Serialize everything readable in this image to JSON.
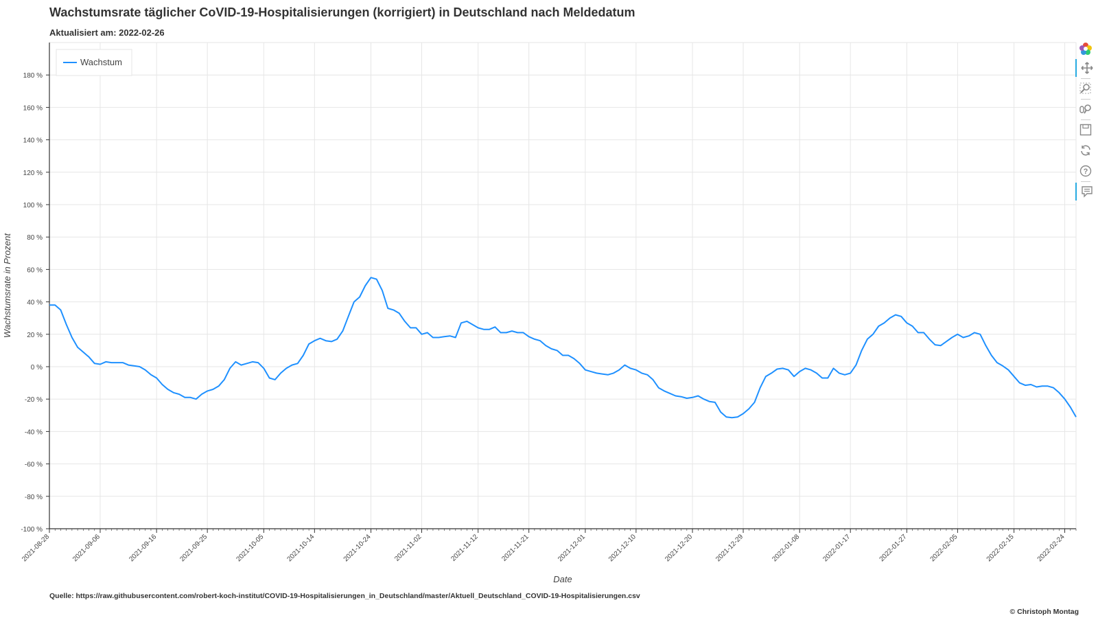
{
  "header": {
    "title": "Wachstumsrate täglicher CoVID-19-Hospitalisierungen (korrigiert) in Deutschland nach Meldedatum",
    "subtitle": "Aktualisiert am: 2022-02-26"
  },
  "footer": {
    "source": "Quelle: https://raw.githubusercontent.com/robert-koch-institut/COVID-19-Hospitalisierungen_in_Deutschland/master/Aktuell_Deutschland_COVID-19-Hospitalisierungen.csv",
    "copyright": "© Christoph Montag"
  },
  "colors": {
    "series": "#1e90ff",
    "grid": "#e6e6e6",
    "axis": "#333333"
  },
  "toolbar": {
    "tools": [
      {
        "icon": "bokeh-logo-icon",
        "active": false
      },
      {
        "icon": "pan-icon",
        "active": true
      },
      {
        "icon": "box-zoom-icon",
        "active": false
      },
      {
        "icon": "wheel-zoom-icon",
        "active": false
      },
      {
        "icon": "save-icon",
        "active": false
      },
      {
        "icon": "reset-icon",
        "active": false
      },
      {
        "icon": "help-icon",
        "active": false
      },
      {
        "icon": "hover-icon",
        "active": true
      }
    ]
  },
  "chart_data": {
    "type": "line",
    "title": "Wachstumsrate täglicher CoVID-19-Hospitalisierungen (korrigiert) in Deutschland nach Meldedatum",
    "xlabel": "Date",
    "ylabel": "Wachstumsrate in Prozent",
    "x_start": "2021-08-28",
    "xlim": [
      "2021-08-28",
      "2022-02-26"
    ],
    "ylim": [
      -100,
      200
    ],
    "yticks": [
      -100,
      -80,
      -60,
      -40,
      -20,
      0,
      20,
      40,
      60,
      80,
      100,
      120,
      140,
      160,
      180
    ],
    "ytick_labels": [
      "-100 %",
      "-80 %",
      "-60 %",
      "-40 %",
      "-20 %",
      "0 %",
      "20 %",
      "40 %",
      "60 %",
      "80 %",
      "100 %",
      "120 %",
      "140 %",
      "160 %",
      "180 %"
    ],
    "xtick_labels": [
      "2021-08-28",
      "2021-09-06",
      "2021-09-16",
      "2021-09-25",
      "2021-10-05",
      "2021-10-14",
      "2021-10-24",
      "2021-11-02",
      "2021-11-12",
      "2021-11-21",
      "2021-12-01",
      "2021-12-10",
      "2021-12-20",
      "2021-12-29",
      "2022-01-08",
      "2022-01-17",
      "2022-01-27",
      "2022-02-05",
      "2022-02-15",
      "2022-02-24"
    ],
    "grid": true,
    "legend_position": "top-left",
    "series": [
      {
        "name": "Wachstum",
        "color": "#1e90ff",
        "x": [
          "2021-08-28",
          "2021-08-29",
          "2021-08-30",
          "2021-08-31",
          "2021-09-01",
          "2021-09-02",
          "2021-09-03",
          "2021-09-04",
          "2021-09-05",
          "2021-09-06",
          "2021-09-07",
          "2021-09-08",
          "2021-09-09",
          "2021-09-10",
          "2021-09-11",
          "2021-09-12",
          "2021-09-13",
          "2021-09-14",
          "2021-09-15",
          "2021-09-16",
          "2021-09-17",
          "2021-09-18",
          "2021-09-19",
          "2021-09-20",
          "2021-09-21",
          "2021-09-22",
          "2021-09-23",
          "2021-09-24",
          "2021-09-25",
          "2021-09-26",
          "2021-09-27",
          "2021-09-28",
          "2021-09-29",
          "2021-09-30",
          "2021-10-01",
          "2021-10-02",
          "2021-10-03",
          "2021-10-04",
          "2021-10-05",
          "2021-10-06",
          "2021-10-07",
          "2021-10-08",
          "2021-10-09",
          "2021-10-10",
          "2021-10-11",
          "2021-10-12",
          "2021-10-13",
          "2021-10-14",
          "2021-10-15",
          "2021-10-16",
          "2021-10-17",
          "2021-10-18",
          "2021-10-19",
          "2021-10-20",
          "2021-10-21",
          "2021-10-22",
          "2021-10-23",
          "2021-10-24",
          "2021-10-25",
          "2021-10-26",
          "2021-10-27",
          "2021-10-28",
          "2021-10-29",
          "2021-10-30",
          "2021-10-31",
          "2021-11-01",
          "2021-11-02",
          "2021-11-03",
          "2021-11-04",
          "2021-11-05",
          "2021-11-06",
          "2021-11-07",
          "2021-11-08",
          "2021-11-09",
          "2021-11-10",
          "2021-11-11",
          "2021-11-12",
          "2021-11-13",
          "2021-11-14",
          "2021-11-15",
          "2021-11-16",
          "2021-11-17",
          "2021-11-18",
          "2021-11-19",
          "2021-11-20",
          "2021-11-21",
          "2021-11-22",
          "2021-11-23",
          "2021-11-24",
          "2021-11-25",
          "2021-11-26",
          "2021-11-27",
          "2021-11-28",
          "2021-11-29",
          "2021-11-30",
          "2021-12-01",
          "2021-12-02",
          "2021-12-03",
          "2021-12-04",
          "2021-12-05",
          "2021-12-06",
          "2021-12-07",
          "2021-12-08",
          "2021-12-09",
          "2021-12-10",
          "2021-12-11",
          "2021-12-12",
          "2021-12-13",
          "2021-12-14",
          "2021-12-15",
          "2021-12-16",
          "2021-12-17",
          "2021-12-18",
          "2021-12-19",
          "2021-12-20",
          "2021-12-21",
          "2021-12-22",
          "2021-12-23",
          "2021-12-24",
          "2021-12-25",
          "2021-12-26",
          "2021-12-27",
          "2021-12-28",
          "2021-12-29",
          "2021-12-30",
          "2021-12-31",
          "2022-01-01",
          "2022-01-02",
          "2022-01-03",
          "2022-01-04",
          "2022-01-05",
          "2022-01-06",
          "2022-01-07",
          "2022-01-08",
          "2022-01-09",
          "2022-01-10",
          "2022-01-11",
          "2022-01-12",
          "2022-01-13",
          "2022-01-14",
          "2022-01-15",
          "2022-01-16",
          "2022-01-17",
          "2022-01-18",
          "2022-01-19",
          "2022-01-20",
          "2022-01-21",
          "2022-01-22",
          "2022-01-23",
          "2022-01-24",
          "2022-01-25",
          "2022-01-26",
          "2022-01-27",
          "2022-01-28",
          "2022-01-29",
          "2022-01-30",
          "2022-01-31",
          "2022-02-01",
          "2022-02-02",
          "2022-02-03",
          "2022-02-04",
          "2022-02-05",
          "2022-02-06",
          "2022-02-07",
          "2022-02-08",
          "2022-02-09",
          "2022-02-10",
          "2022-02-11",
          "2022-02-12",
          "2022-02-13",
          "2022-02-14",
          "2022-02-15",
          "2022-02-16",
          "2022-02-17",
          "2022-02-18",
          "2022-02-19",
          "2022-02-20",
          "2022-02-21",
          "2022-02-22",
          "2022-02-23",
          "2022-02-24",
          "2022-02-25",
          "2022-02-26"
        ],
        "y": [
          38,
          38,
          35,
          26,
          18,
          12,
          9,
          6,
          2,
          1.5,
          3,
          2.5,
          2.5,
          2.5,
          1,
          0.5,
          0,
          -2,
          -5,
          -7,
          -11,
          -14,
          -16,
          -17,
          -19,
          -19,
          -20,
          -17,
          -15,
          -14,
          -12,
          -8,
          -1,
          3,
          1,
          2,
          3,
          2.5,
          -1,
          -7,
          -8,
          -4,
          -1,
          1,
          2,
          7,
          14,
          16,
          17.5,
          16,
          15.5,
          17,
          22,
          31,
          40,
          43,
          50,
          55,
          54,
          47,
          36,
          35,
          33,
          28,
          24,
          24,
          20,
          21,
          18,
          18,
          18.5,
          19,
          18,
          27,
          28,
          26,
          24,
          23,
          23,
          24.5,
          21,
          21,
          22,
          21,
          21,
          18.5,
          17,
          16,
          13,
          11,
          10,
          7,
          7,
          5,
          2,
          -2,
          -3,
          -4,
          -4.5,
          -5,
          -4,
          -2,
          1,
          -1,
          -2,
          -4,
          -5,
          -8,
          -13,
          -15,
          -16.5,
          -18,
          -18.5,
          -19.5,
          -19,
          -18,
          -20,
          -21.5,
          -22,
          -28,
          -31,
          -31.5,
          -31,
          -29,
          -26,
          -22,
          -13,
          -6,
          -4,
          -1.5,
          -1,
          -2,
          -6,
          -3,
          -1,
          -2,
          -4,
          -7,
          -7,
          -1,
          -4,
          -5,
          -4,
          1,
          10,
          17,
          20,
          25,
          27,
          30,
          32,
          31,
          27,
          25,
          21,
          21,
          17,
          13.5,
          13,
          15.5,
          18,
          20,
          18,
          19,
          21,
          20,
          13,
          7,
          2.5,
          0.5,
          -2,
          -6,
          -10,
          -11.5,
          -11,
          -12.5,
          -12,
          -12,
          -13,
          -16,
          -20,
          -25,
          -31
        ]
      }
    ]
  }
}
